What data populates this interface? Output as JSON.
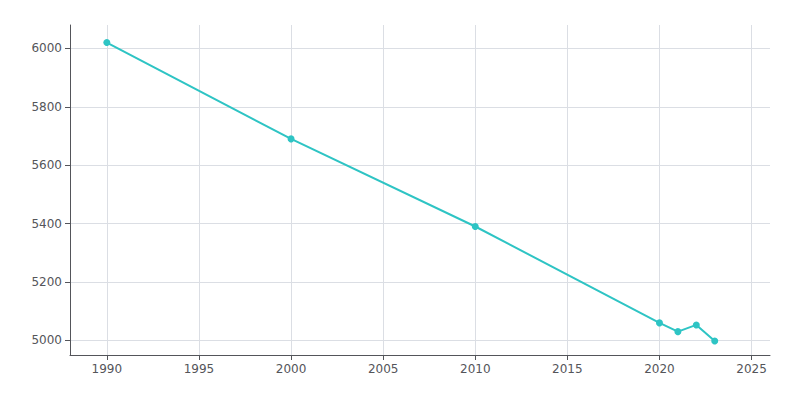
{
  "chart_data": {
    "type": "line",
    "x": [
      1990,
      2000,
      2010,
      2020,
      2021,
      2022,
      2023
    ],
    "values": [
      6020,
      5690,
      5390,
      5060,
      5030,
      5053,
      4998
    ],
    "color": "#2ec4c4",
    "marker": "circle",
    "xlim": [
      1988,
      2026
    ],
    "xticks": [
      1990,
      1995,
      2000,
      2005,
      2010,
      2015,
      2020,
      2025
    ],
    "ylim": [
      4950,
      6080
    ],
    "yticks": [
      5000,
      5200,
      5400,
      5600,
      5800,
      6000
    ],
    "grid": true
  }
}
